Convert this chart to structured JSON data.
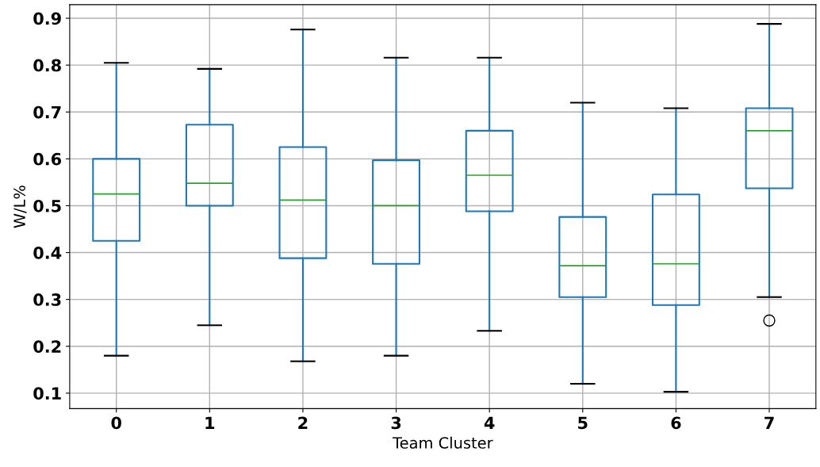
{
  "chart_data": {
    "type": "box",
    "xlabel": "Team Cluster",
    "ylabel": "W/L%",
    "categories": [
      "0",
      "1",
      "2",
      "3",
      "4",
      "5",
      "6",
      "7"
    ],
    "boxes": [
      {
        "low": 0.18,
        "q1": 0.425,
        "median": 0.525,
        "q3": 0.6,
        "high": 0.805
      },
      {
        "low": 0.245,
        "q1": 0.5,
        "median": 0.548,
        "q3": 0.673,
        "high": 0.792
      },
      {
        "low": 0.168,
        "q1": 0.388,
        "median": 0.512,
        "q3": 0.625,
        "high": 0.876
      },
      {
        "low": 0.18,
        "q1": 0.376,
        "median": 0.5,
        "q3": 0.597,
        "high": 0.816
      },
      {
        "low": 0.233,
        "q1": 0.488,
        "median": 0.565,
        "q3": 0.66,
        "high": 0.816
      },
      {
        "low": 0.12,
        "q1": 0.305,
        "median": 0.372,
        "q3": 0.476,
        "high": 0.72
      },
      {
        "low": 0.103,
        "q1": 0.288,
        "median": 0.376,
        "q3": 0.524,
        "high": 0.708
      },
      {
        "low": 0.305,
        "q1": 0.537,
        "median": 0.66,
        "q3": 0.708,
        "high": 0.888,
        "outliers": [
          0.255
        ]
      }
    ],
    "color": "#1f77b4",
    "ylim": [
      0.067,
      0.929
    ],
    "yticks": [
      0.1,
      0.2,
      0.3,
      0.4,
      0.5,
      0.6,
      0.7,
      0.8,
      0.9
    ],
    "grid": true
  }
}
